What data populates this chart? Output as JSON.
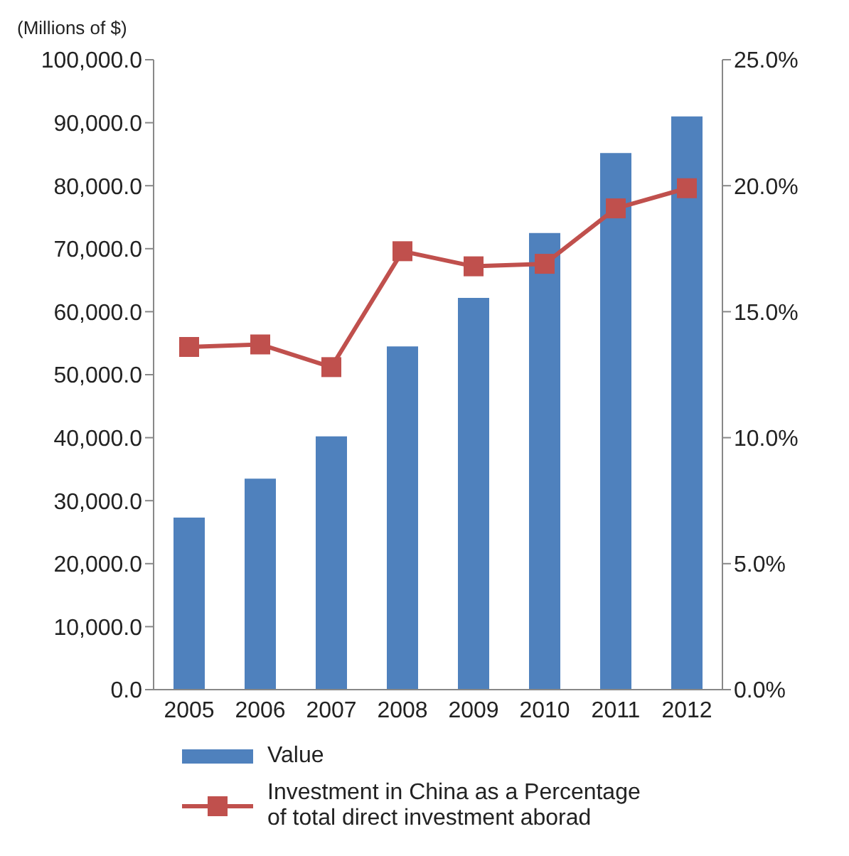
{
  "chart_data": {
    "type": "bar",
    "ylabel": "(Millions of $)",
    "categories": [
      "2005",
      "2006",
      "2007",
      "2008",
      "2009",
      "2010",
      "2011",
      "2012"
    ],
    "series": [
      {
        "name": "Value",
        "color": "#4f81bd",
        "values": [
          27300,
          33500,
          40200,
          54500,
          62200,
          72500,
          85200,
          91000
        ]
      },
      {
        "name": "Investment in China as a Percentage of total direct investment aborad",
        "type": "line",
        "axis": "y2",
        "color": "#c0504d",
        "marker": "square",
        "values": [
          13.6,
          13.7,
          12.8,
          17.4,
          16.8,
          16.9,
          19.1,
          19.9
        ]
      }
    ],
    "ylim": [
      0,
      100000
    ],
    "yticks": [
      {
        "value": 0,
        "label": "0.0"
      },
      {
        "value": 10000,
        "label": "10,000.0"
      },
      {
        "value": 20000,
        "label": "20,000.0"
      },
      {
        "value": 30000,
        "label": "30,000.0"
      },
      {
        "value": 40000,
        "label": "40,000.0"
      },
      {
        "value": 50000,
        "label": "50,000.0"
      },
      {
        "value": 60000,
        "label": "60,000.0"
      },
      {
        "value": 70000,
        "label": "70,000.0"
      },
      {
        "value": 80000,
        "label": "80,000.0"
      },
      {
        "value": 90000,
        "label": "90,000.0"
      },
      {
        "value": 100000,
        "label": "100,000.0"
      }
    ],
    "y2lim": [
      0,
      25
    ],
    "y2ticks": [
      {
        "value": 0,
        "label": "0.0%"
      },
      {
        "value": 5,
        "label": "5.0%"
      },
      {
        "value": 10,
        "label": "10.0%"
      },
      {
        "value": 15,
        "label": "15.0%"
      },
      {
        "value": 20,
        "label": "20.0%"
      },
      {
        "value": 25,
        "label": "25.0%"
      }
    ],
    "legend": "bottom",
    "grid": false
  }
}
